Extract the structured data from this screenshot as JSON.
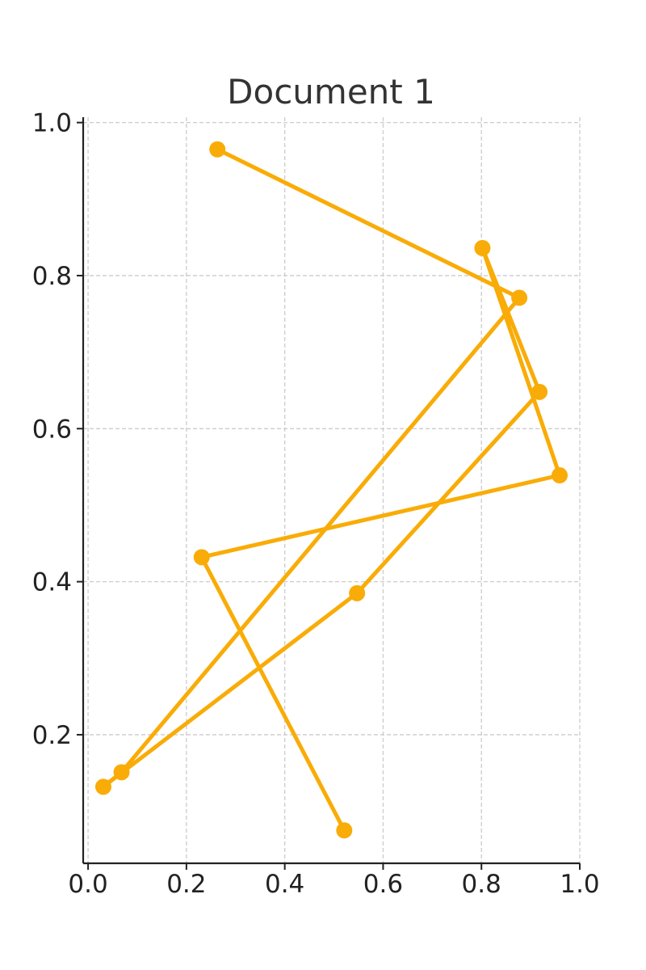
{
  "chart_data": {
    "type": "line",
    "title": "Document 1",
    "xlabel": "",
    "ylabel": "",
    "xlim": [
      -0.01,
      1.0
    ],
    "ylim": [
      0.032,
      1.007
    ],
    "grid": true,
    "x_ticks": [
      0.0,
      0.2,
      0.4,
      0.6,
      0.8,
      1.0
    ],
    "x_tick_labels": [
      "0.0",
      "0.2",
      "0.4",
      "0.6",
      "0.8",
      "1.0"
    ],
    "y_ticks": [
      0.2,
      0.4,
      0.6,
      0.8,
      1.0
    ],
    "y_tick_labels": [
      "0.2",
      "0.4",
      "0.6",
      "0.8",
      "1.0"
    ],
    "series": [
      {
        "color": "#F9AC07",
        "marker": "circle",
        "points": [
          {
            "x": 0.263,
            "y": 0.965
          },
          {
            "x": 0.877,
            "y": 0.771
          },
          {
            "x": 0.068,
            "y": 0.151
          },
          {
            "x": 0.031,
            "y": 0.132
          },
          {
            "x": 0.547,
            "y": 0.385
          },
          {
            "x": 0.918,
            "y": 0.648
          },
          {
            "x": 0.802,
            "y": 0.836
          },
          {
            "x": 0.959,
            "y": 0.539
          },
          {
            "x": 0.231,
            "y": 0.432
          },
          {
            "x": 0.521,
            "y": 0.075
          }
        ]
      }
    ]
  }
}
